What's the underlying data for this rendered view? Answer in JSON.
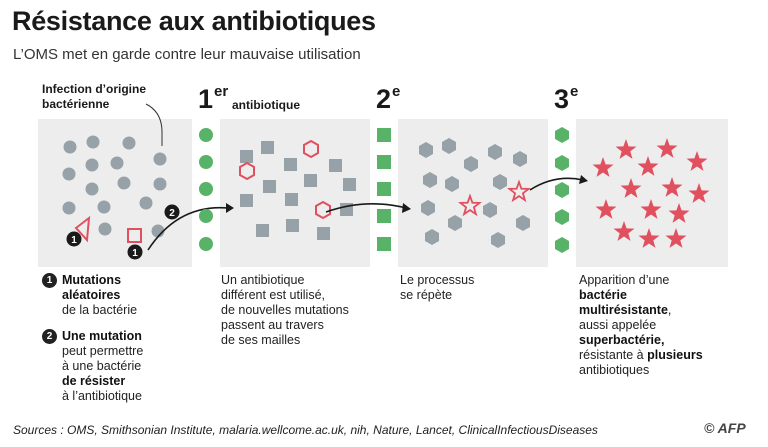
{
  "header": {
    "title": "Résistance aux antibiotiques",
    "subtitle": "L’OMS met en garde contre leur mauvaise utilisation"
  },
  "panel1": {
    "label_line1": "Infection d’origine",
    "label_line2": "bactérienne",
    "marker1": "1",
    "marker2": "2"
  },
  "step1": {
    "num": "1",
    "sup": "er",
    "label": "antibiotique"
  },
  "step2": {
    "num": "2",
    "sup": "e"
  },
  "step3": {
    "num": "3",
    "sup": "e"
  },
  "notes": {
    "n1_num": "1",
    "n1_bold_a": "Mutations",
    "n1_bold_b": "aléatoires",
    "n1_text": "de la bactérie",
    "n2_num": "2",
    "n2_bold": "Une mutation",
    "n2_text_a": "peut permettre",
    "n2_text_b": "à une bactérie",
    "n2_bold_b": "de résister",
    "n2_text_c": "à l’antibiotique"
  },
  "desc2": {
    "l1": "Un antibiotique",
    "l2": "différent est utilisé,",
    "l3": "de nouvelles mutations",
    "l4": "passent au travers",
    "l5": "de ses mailles"
  },
  "desc3": {
    "l1": "Le processus",
    "l2": "se répète"
  },
  "desc4": {
    "l1": "Apparition d’une",
    "l2_bold": "bactérie",
    "l3_bold": "multirésistante",
    "l3_tail": ",",
    "l4": "aussi appelée",
    "l5_bold": "superbactérie,",
    "l6": "résistante à ",
    "l6_bold": "plusieurs",
    "l7": "antibiotiques"
  },
  "footer": {
    "sources": "Sources : OMS, Smithsonian Institute, malaria.wellcome.ac.uk, nih, Nature, Lancet, ClinicalInfectiousDiseases",
    "logo": "© AFP"
  },
  "colors": {
    "panel": "#ededed",
    "bacteria": "#96a1a8",
    "mutant": "#e0505f",
    "antibiotic": "#58b368"
  }
}
